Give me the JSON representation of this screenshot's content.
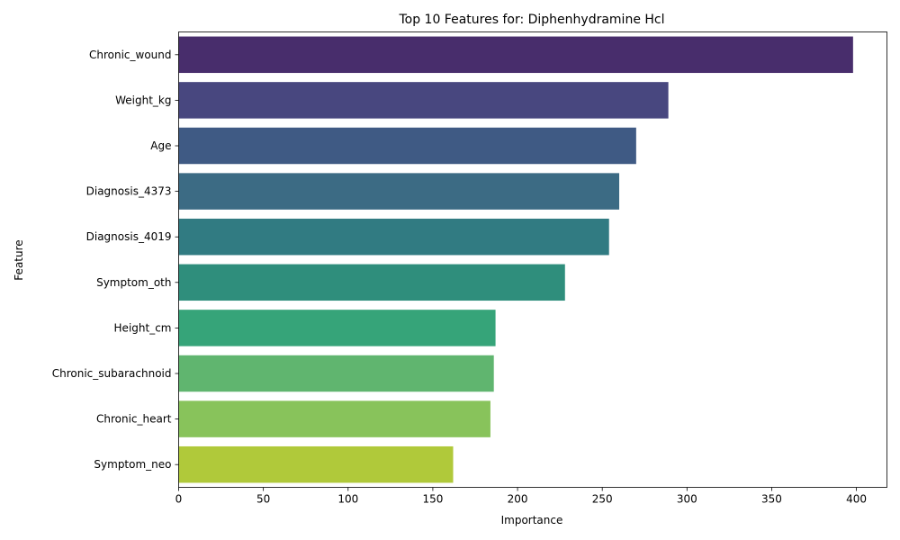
{
  "chart_data": {
    "type": "bar",
    "orientation": "horizontal",
    "title": "Top 10 Features for: Diphenhydramine Hcl",
    "xlabel": "Importance",
    "ylabel": "Feature",
    "xlim": [
      0,
      418
    ],
    "x_ticks": [
      0,
      50,
      100,
      150,
      200,
      250,
      300,
      350,
      400
    ],
    "grid": false,
    "categories": [
      "Chronic_wound",
      "Weight_kg",
      "Age",
      "Diagnosis_4373",
      "Diagnosis_4019",
      "Symptom_oth",
      "Height_cm",
      "Chronic_subarachnoid",
      "Chronic_heart",
      "Symptom_neo"
    ],
    "values": [
      398,
      289,
      270,
      260,
      254,
      228,
      187,
      186,
      184,
      162
    ],
    "colors": [
      "#482d6c",
      "#48477f",
      "#3f5a84",
      "#3c6b84",
      "#317b82",
      "#2f8e7c",
      "#36a479",
      "#60b56f",
      "#88c35b",
      "#b0c93a"
    ],
    "palette": "viridis"
  }
}
